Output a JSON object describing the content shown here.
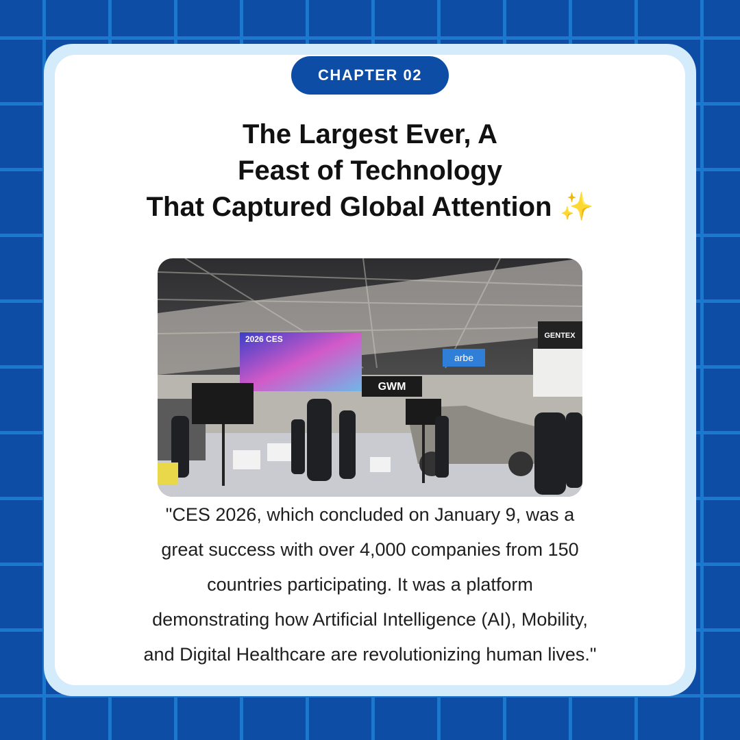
{
  "badge": "CHAPTER 02",
  "title": {
    "lines": [
      "The Largest Ever, A",
      "Feast of Technology",
      "That Captured Global Attention ✨"
    ]
  },
  "photo": {
    "signs": [
      "2026 CES",
      "GWM",
      "arbe",
      "GENTEX"
    ]
  },
  "quote": {
    "lines": [
      "\"CES 2026, which concluded on January 9, was a",
      "great success with over 4,000 companies from 150",
      "countries participating. It was a platform",
      "demonstrating how Artificial Intelligence (AI), Mobility,",
      "and Digital Healthcare are revolutionizing human lives.\""
    ]
  }
}
